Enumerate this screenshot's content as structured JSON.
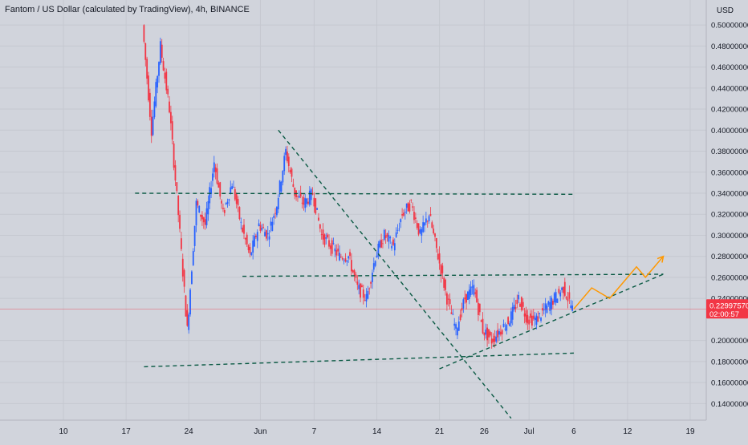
{
  "header": {
    "title": "Fantom / US Dollar (calculated by TradingView), 4h, BINANCE",
    "currency": "USD"
  },
  "price_label": {
    "price": "0.22997570",
    "countdown": "02:00:57"
  },
  "colors": {
    "background": "#d1d4dc",
    "up_candle": "#2962ff",
    "down_candle": "#f23645",
    "trendline": "#0b5a44",
    "projection": "#ff9800",
    "price_line": "#f23645"
  },
  "chart_data": {
    "type": "candlestick",
    "title": "Fantom / US Dollar (calculated by TradingView), 4h, BINANCE",
    "xlabel": "",
    "ylabel": "USD",
    "x_tick_labels": [
      "10",
      "17",
      "24",
      "Jun",
      "7",
      "14",
      "21",
      "26",
      "Jul",
      "6",
      "12",
      "19"
    ],
    "x_tick_dates": [
      "2021-05-10",
      "2021-05-17",
      "2021-05-24",
      "2021-06-01",
      "2021-06-07",
      "2021-06-14",
      "2021-06-21",
      "2021-06-26",
      "2021-07-01",
      "2021-07-06",
      "2021-07-12",
      "2021-07-19"
    ],
    "y_tick_labels": [
      "0.50000000",
      "0.48000000",
      "0.46000000",
      "0.44000000",
      "0.42000000",
      "0.40000000",
      "0.38000000",
      "0.36000000",
      "0.34000000",
      "0.32000000",
      "0.30000000",
      "0.28000000",
      "0.26000000",
      "0.24000000",
      "0.20000000",
      "0.18000000",
      "0.16000000",
      "0.14000000"
    ],
    "ylim": [
      0.125,
      0.51
    ],
    "last_price": 0.2299757,
    "price_path": [
      [
        "2021-05-19",
        0.5
      ],
      [
        "2021-05-20",
        0.4
      ],
      [
        "2021-05-21",
        0.48
      ],
      [
        "2021-05-22",
        0.42
      ],
      [
        "2021-05-23",
        0.32
      ],
      [
        "2021-05-24",
        0.21
      ],
      [
        "2021-05-25",
        0.33
      ],
      [
        "2021-05-26",
        0.31
      ],
      [
        "2021-05-27",
        0.37
      ],
      [
        "2021-05-28",
        0.32
      ],
      [
        "2021-05-29",
        0.35
      ],
      [
        "2021-05-30",
        0.31
      ],
      [
        "2021-05-31",
        0.28
      ],
      [
        "2021-06-01",
        0.31
      ],
      [
        "2021-06-02",
        0.3
      ],
      [
        "2021-06-03",
        0.33
      ],
      [
        "2021-06-04",
        0.38
      ],
      [
        "2021-06-05",
        0.34
      ],
      [
        "2021-06-06",
        0.33
      ],
      [
        "2021-06-07",
        0.34
      ],
      [
        "2021-06-08",
        0.3
      ],
      [
        "2021-06-09",
        0.29
      ],
      [
        "2021-06-10",
        0.28
      ],
      [
        "2021-06-11",
        0.28
      ],
      [
        "2021-06-12",
        0.25
      ],
      [
        "2021-06-13",
        0.24
      ],
      [
        "2021-06-14",
        0.28
      ],
      [
        "2021-06-15",
        0.3
      ],
      [
        "2021-06-16",
        0.29
      ],
      [
        "2021-06-17",
        0.32
      ],
      [
        "2021-06-18",
        0.33
      ],
      [
        "2021-06-19",
        0.3
      ],
      [
        "2021-06-20",
        0.32
      ],
      [
        "2021-06-21",
        0.28
      ],
      [
        "2021-06-22",
        0.24
      ],
      [
        "2021-06-23",
        0.21
      ],
      [
        "2021-06-24",
        0.24
      ],
      [
        "2021-06-25",
        0.25
      ],
      [
        "2021-06-26",
        0.21
      ],
      [
        "2021-06-27",
        0.2
      ],
      [
        "2021-06-28",
        0.21
      ],
      [
        "2021-06-29",
        0.22
      ],
      [
        "2021-06-30",
        0.24
      ],
      [
        "2021-07-01",
        0.22
      ],
      [
        "2021-07-02",
        0.22
      ],
      [
        "2021-07-03",
        0.23
      ],
      [
        "2021-07-04",
        0.24
      ],
      [
        "2021-07-05",
        0.25
      ],
      [
        "2021-07-06",
        0.23
      ]
    ],
    "drawings": [
      {
        "kind": "horizontal-dashed",
        "start": [
          "2021-05-18",
          0.34
        ],
        "end": [
          "2021-07-06",
          0.339
        ]
      },
      {
        "kind": "horizontal-dashed",
        "start": [
          "2021-05-30",
          0.261
        ],
        "end": [
          "2021-07-16",
          0.263
        ]
      },
      {
        "kind": "horizontal-dashed",
        "start": [
          "2021-05-19",
          0.175
        ],
        "end": [
          "2021-07-06",
          0.188
        ]
      },
      {
        "kind": "descending-trendline",
        "start": [
          "2021-06-03",
          0.4
        ],
        "end": [
          "2021-06-29",
          0.126
        ]
      },
      {
        "kind": "ascending-trendline",
        "start": [
          "2021-06-21",
          0.173
        ],
        "end": [
          "2021-07-16",
          0.263
        ]
      }
    ],
    "projection_path": [
      [
        "2021-07-06",
        0.23
      ],
      [
        "2021-07-08",
        0.25
      ],
      [
        "2021-07-10",
        0.24
      ],
      [
        "2021-07-13",
        0.27
      ],
      [
        "2021-07-14",
        0.26
      ],
      [
        "2021-07-16",
        0.28
      ]
    ],
    "grid": true
  }
}
